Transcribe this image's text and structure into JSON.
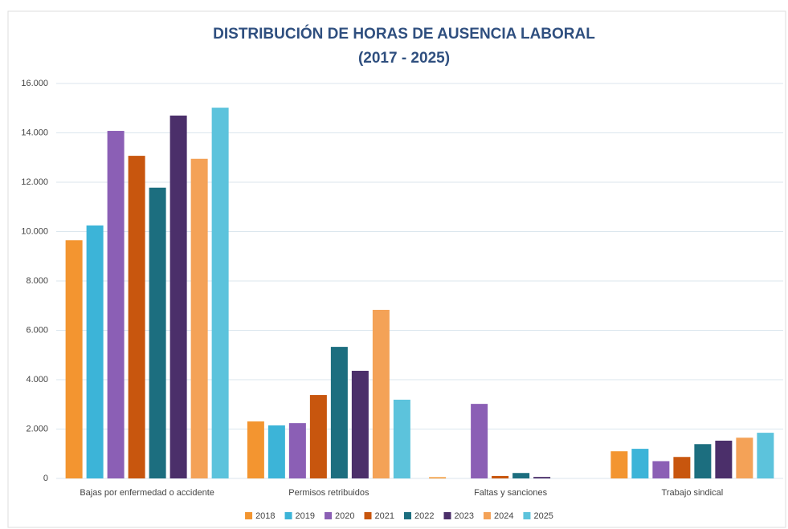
{
  "chart_data": {
    "type": "bar",
    "title": "DISTRIBUCIÓN DE HORAS DE AUSENCIA LABORAL",
    "subtitle": "(2017 - 2025)",
    "categories": [
      "Bajas por enfermedad o accidente",
      "Permisos retribuidos",
      "Faltas y sanciones",
      "Trabajo sindical"
    ],
    "series": [
      {
        "name": "2018",
        "color": "#f39530",
        "values": [
          9650,
          2310,
          50,
          1100
        ]
      },
      {
        "name": "2019",
        "color": "#3cb4d8",
        "values": [
          10250,
          2150,
          0,
          1200
        ]
      },
      {
        "name": "2020",
        "color": "#8b5fb5",
        "values": [
          14080,
          2240,
          3020,
          700
        ]
      },
      {
        "name": "2021",
        "color": "#c8560e",
        "values": [
          13070,
          3380,
          100,
          870
        ]
      },
      {
        "name": "2022",
        "color": "#1c6e7f",
        "values": [
          11780,
          5330,
          220,
          1390
        ]
      },
      {
        "name": "2023",
        "color": "#4b2f6a",
        "values": [
          14700,
          4360,
          60,
          1530
        ]
      },
      {
        "name": "2024",
        "color": "#f4a257",
        "values": [
          12950,
          6830,
          0,
          1650
        ]
      },
      {
        "name": "2025",
        "color": "#5cc3dc",
        "values": [
          15020,
          3190,
          0,
          1850
        ]
      }
    ],
    "ylim": [
      0,
      16000
    ],
    "yticks": [
      0,
      {
        "value": 2000,
        "label": "2.000"
      },
      {
        "value": 4000,
        "label": "4.000"
      },
      {
        "value": 6000,
        "label": "6.000"
      },
      {
        "value": 8000,
        "label": "8.000"
      },
      {
        "value": 10000,
        "label": "10.000"
      },
      {
        "value": 12000,
        "label": "12.000"
      },
      {
        "value": 14000,
        "label": "14.000"
      },
      {
        "value": 16000,
        "label": "16.000"
      }
    ],
    "grid": true,
    "legend": "bottom"
  }
}
